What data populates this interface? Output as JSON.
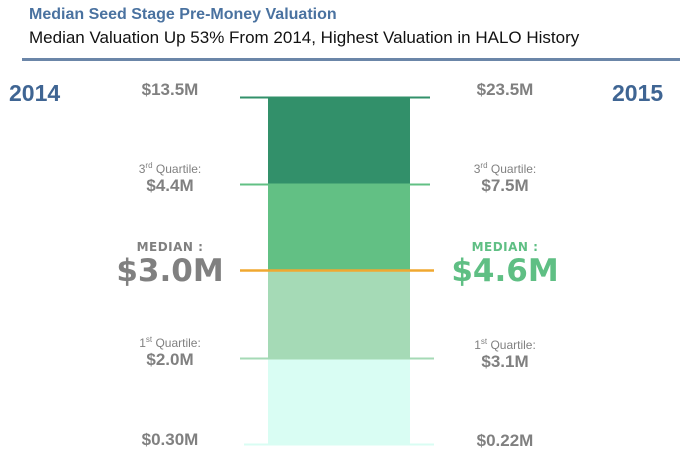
{
  "header": {
    "title": "Median Seed Stage Pre-Money Valuation",
    "subtitle": "Median Valuation Up 53% From 2014, Highest Valuation in HALO History"
  },
  "colors": {
    "title": "#4a72a0",
    "year": "#3f6593",
    "label": "#808080",
    "median_2015": "#5fbf84",
    "median_line": "#f0a830",
    "q4_box": "#32906a",
    "q3_box": "#62c084",
    "q2_box": "#a5dab6",
    "q1_box": "#d9fdf3"
  },
  "chart_data": {
    "type": "box",
    "title": "Median Seed Stage Pre-Money Valuation",
    "subtitle": "Median Valuation Up 53% From 2014, Highest Valuation in HALO History",
    "unit": "$M",
    "series": [
      {
        "name": "2014",
        "max": 13.5,
        "q3": 4.4,
        "median": 3.0,
        "q1": 2.0,
        "min": 0.3,
        "labels": {
          "max": "$13.5M",
          "q3": "$4.4M",
          "median": "$3.0M",
          "q1": "$2.0M",
          "min": "$0.30M"
        }
      },
      {
        "name": "2015",
        "max": 23.5,
        "q3": 7.5,
        "median": 4.6,
        "q1": 3.1,
        "min": 0.22,
        "labels": {
          "max": "$23.5M",
          "q3": "$7.5M",
          "median": "$4.6M",
          "q1": "$3.1M",
          "min": "$0.22M"
        }
      }
    ],
    "captions": {
      "q3": "Quartile:",
      "q3_prefix": "3",
      "q3_suffix": "rd",
      "q1_prefix": "1",
      "q1_suffix": "st",
      "q1": "Quartile:",
      "median": "MEDIAN :"
    }
  }
}
